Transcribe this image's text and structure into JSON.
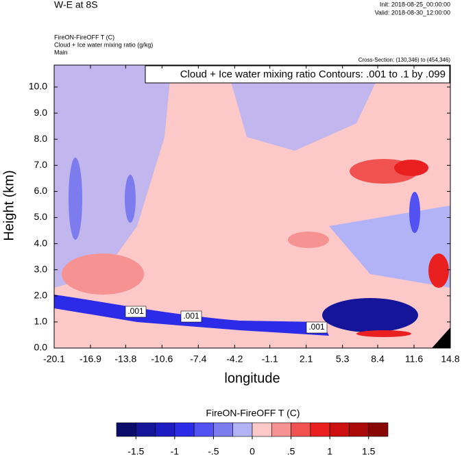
{
  "chart_data": {
    "type": "contour",
    "title": "W-E at 8S",
    "init": "Init: 2018-08-25_00:00:00",
    "valid": "Valid: 2018-08-30_12:00:00",
    "subtitle_lines": [
      "FireON-FireOFF T   (C)",
      "Cloud + Ice water mixing ratio   (g/kg)",
      "Main"
    ],
    "cross_section": "Cross-Section: (130,346) to (454,346)",
    "contour_info": "Cloud + Ice water mixing ratio Contours: .001 to .1 by .099",
    "contour_labels": [
      ".001",
      ".001",
      ".001"
    ],
    "xlabel": "longitude",
    "ylabel": "Height (km)",
    "xlim": [
      -20.1,
      14.8
    ],
    "xticks": [
      -20.1,
      -16.9,
      -13.8,
      -10.6,
      -7.4,
      -4.2,
      -1.1,
      2.1,
      5.3,
      8.4,
      11.6,
      14.8
    ],
    "ylim": [
      0,
      10.84
    ],
    "yticks": [
      {
        "value": 0,
        "label": "0.0"
      },
      {
        "value": 1,
        "label": "1.0"
      },
      {
        "value": 2,
        "label": "2.0"
      },
      {
        "value": 3,
        "label": "3.0"
      },
      {
        "value": 4,
        "label": "4.0"
      },
      {
        "value": 5,
        "label": "5.0"
      },
      {
        "value": 6,
        "label": "6.0"
      },
      {
        "value": 7,
        "label": "7.0"
      },
      {
        "value": 8,
        "label": "8.0"
      },
      {
        "value": 9,
        "label": "9.0"
      },
      {
        "value": 10,
        "label": "10.0"
      }
    ],
    "colorbar": {
      "title": "FireON-FireOFF T  (C)",
      "lim": [
        -1.75,
        1.75
      ],
      "colors": [
        "#0c0c6a",
        "#15159a",
        "#1c1cc2",
        "#2b2be8",
        "#5252f2",
        "#7c7cee",
        "#b2b2f6",
        "#fcc8c8",
        "#f69292",
        "#f05252",
        "#ea2020",
        "#cc1010",
        "#aa0a0a",
        "#880606"
      ],
      "ticks": [
        -1.5,
        -1,
        {
          "value": -0.5,
          "label": "-.5"
        },
        0,
        {
          "value": 0.5,
          "label": ".5"
        },
        1,
        1.5
      ]
    }
  }
}
